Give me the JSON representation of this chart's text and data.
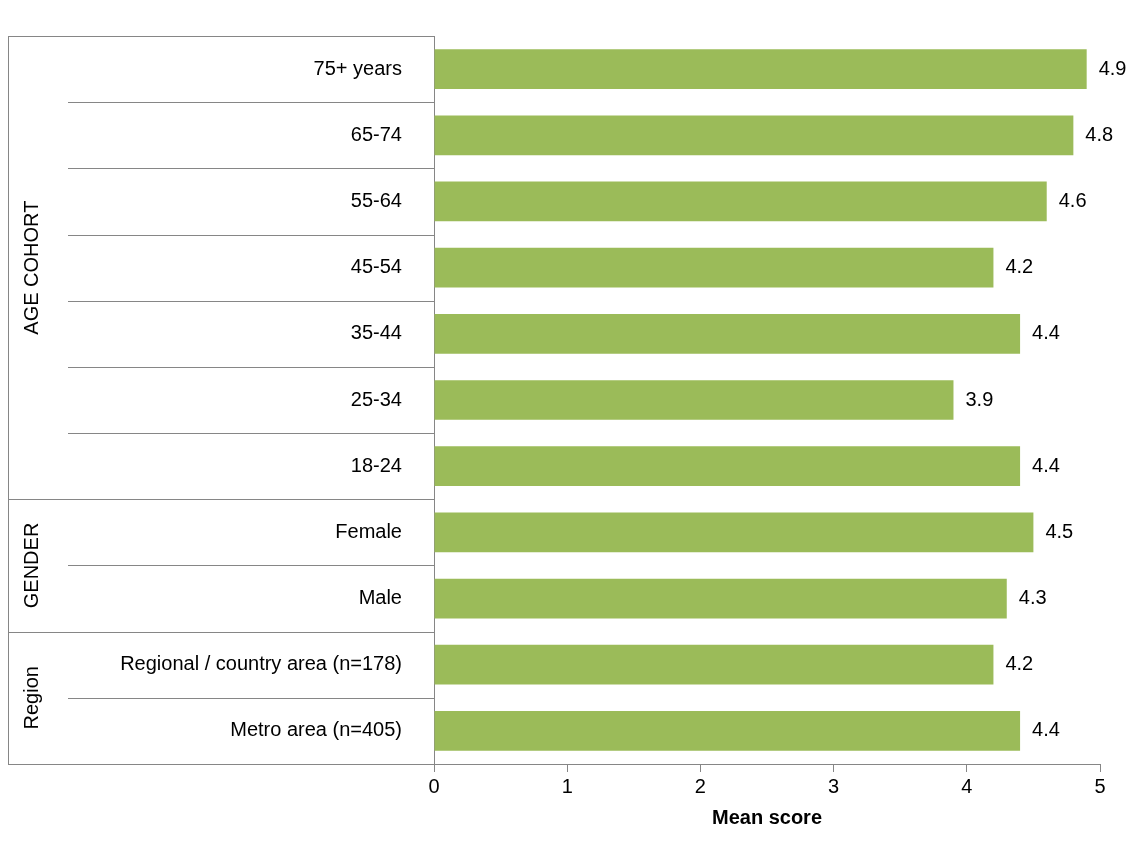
{
  "chart_data": {
    "type": "bar",
    "orientation": "horizontal",
    "xlabel": "Mean score",
    "categories": [
      "75+ years",
      "65-74",
      "55-64",
      "45-54",
      "35-44",
      "25-34",
      "18-24",
      "Female",
      "Male",
      "Regional / country area (n=178)",
      "Metro area (n=405)"
    ],
    "values": [
      4.9,
      4.8,
      4.6,
      4.2,
      4.4,
      3.9,
      4.4,
      4.5,
      4.3,
      4.2,
      4.4
    ],
    "color": "#9bbb59",
    "xlim": [
      0,
      5
    ],
    "xticks": [
      0,
      1,
      2,
      3,
      4,
      5
    ],
    "data_labels": true,
    "annotations": [
      "AGE COHORT",
      "GENDER",
      "Region"
    ]
  }
}
